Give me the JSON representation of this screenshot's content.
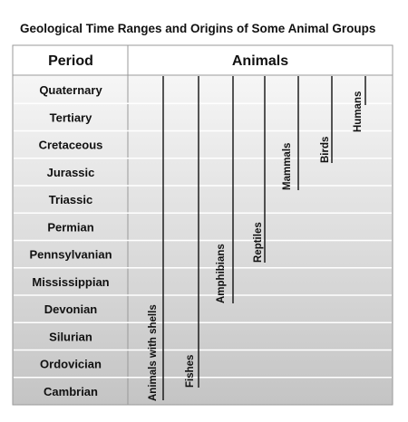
{
  "title": "Geological Time Ranges and Origins of Some Animal Groups",
  "table": {
    "headers": [
      "Period",
      "Animals"
    ],
    "periods": [
      "Quaternary",
      "Tertiary",
      "Cretaceous",
      "Jurassic",
      "Triassic",
      "Permian",
      "Pennsylvanian",
      "Mississippian",
      "Devonian",
      "Silurian",
      "Ordovician",
      "Cambrian"
    ],
    "animals": [
      "Animals with shells",
      "Fishes",
      "Amphibians",
      "Reptiles",
      "Mammals",
      "Birds",
      "Humans"
    ]
  }
}
